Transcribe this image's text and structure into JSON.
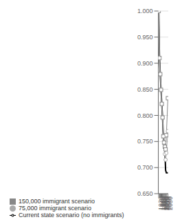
{
  "chart_data": {
    "type": "line",
    "x": [
      1930,
      1940,
      1950,
      1960,
      1970,
      1980,
      1990,
      2000,
      2010,
      2020,
      2030,
      2050
    ],
    "series": [
      {
        "name": "Current state scenario (no immigrants)",
        "color": "#000000",
        "marker": "none",
        "values": [
          1.0,
          0.91,
          0.879,
          0.849,
          0.822,
          0.796,
          0.76,
          0.748,
          0.738,
          0.695,
          0.69,
          0.69
        ]
      },
      {
        "name": "150,000 immigrant scenario",
        "color": "#888888",
        "marker": "square",
        "values": [
          1.0,
          0.91,
          0.879,
          0.849,
          0.822,
          0.796,
          0.76,
          0.748,
          0.74,
          0.735,
          0.762,
          0.833
        ]
      },
      {
        "name": "75,000 immigrant scenario",
        "color": "#aaaaaa",
        "marker": "circle",
        "values": [
          1.0,
          0.91,
          0.879,
          0.849,
          0.822,
          0.796,
          0.76,
          0.748,
          0.726,
          0.715,
          0.728,
          0.77
        ]
      }
    ],
    "xlim": [
      1925,
      2055
    ],
    "xticks": [
      1930,
      1940,
      1950,
      1960,
      1970,
      1980,
      1990,
      2000,
      2010,
      2020,
      2030,
      2050
    ],
    "ylim": [
      0.65,
      1.0
    ],
    "yticks": [
      {
        "value": 0.65,
        "label": "0.650"
      },
      {
        "value": 0.7,
        "label": "0.700"
      },
      {
        "value": 0.75,
        "label": "0.750"
      },
      {
        "value": 0.8,
        "label": "0.800"
      },
      {
        "value": 0.85,
        "label": "0.850"
      },
      {
        "value": 0.9,
        "label": "0.900"
      },
      {
        "value": 0.95,
        "label": "0.950"
      },
      {
        "value": 1.0,
        "label": "1.000"
      }
    ],
    "grid": true,
    "legend": "bottom"
  }
}
